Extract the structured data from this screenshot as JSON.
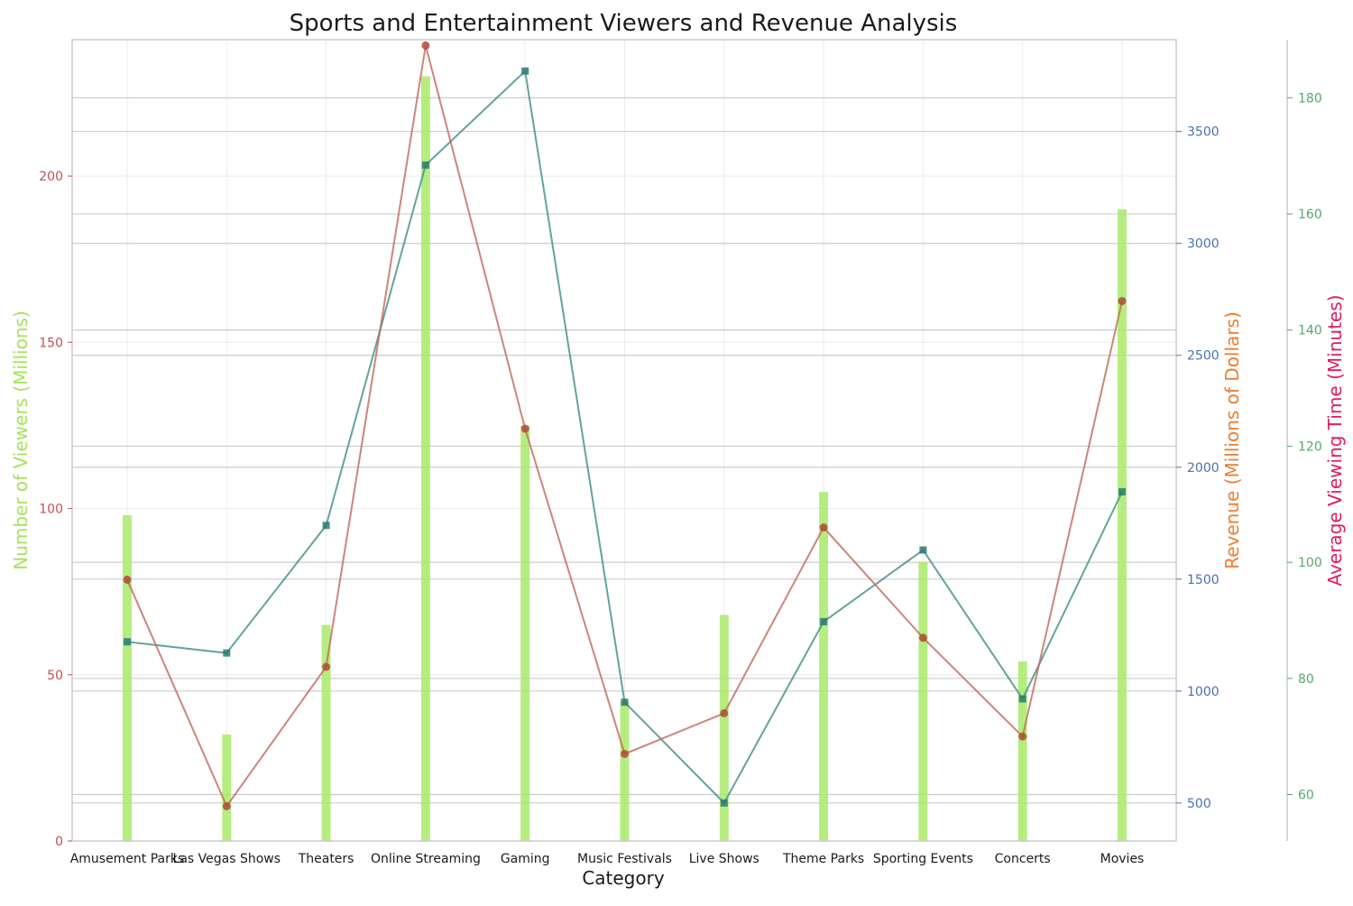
{
  "chart_data": {
    "type": "bar",
    "title": "Sports and Entertainment Viewers and Revenue Analysis",
    "xlabel": "Category",
    "categories": [
      "Amusement Parks",
      "Las Vegas Shows",
      "Theaters",
      "Online Streaming",
      "Gaming",
      "Music Festivals",
      "Live Shows",
      "Theme Parks",
      "Sporting Events",
      "Concerts",
      "Movies"
    ],
    "axes": {
      "viewers": {
        "label": "Number of Viewers (Millions)",
        "label_color": "#a9e15f",
        "tick_color": "#c44e52",
        "ylim": [
          0,
          241
        ],
        "ticks": [
          0,
          50,
          100,
          150,
          200
        ]
      },
      "revenue": {
        "label": "Revenue (Millions of Dollars)",
        "label_color": "#ed7d31",
        "tick_color": "#4c72b0",
        "ylim": [
          330,
          3910
        ],
        "ticks": [
          500,
          1000,
          1500,
          2000,
          2500,
          3000,
          3500
        ]
      },
      "viewing_time": {
        "label": "Average Viewing Time (Minutes)",
        "label_color": "#e31a5a",
        "tick_color": "#55a868",
        "ylim": [
          52,
          190
        ],
        "ticks": [
          60,
          80,
          100,
          120,
          140,
          160,
          180
        ]
      }
    },
    "series": [
      {
        "axis": "viewers",
        "kind": "bar",
        "color": "#a9ea6a",
        "values": [
          98,
          32,
          65,
          230,
          125,
          42,
          68,
          105,
          84,
          54,
          190
        ]
      },
      {
        "axis": "revenue",
        "kind": "line",
        "marker": "square",
        "color": "#3d8c86",
        "marker_color": "#2a7a72",
        "values": [
          1220,
          1170,
          1740,
          3350,
          3770,
          950,
          500,
          1310,
          1630,
          965,
          1890
        ]
      },
      {
        "axis": "viewing_time",
        "kind": "line",
        "marker": "circle",
        "color": "#c0665a",
        "marker_color": "#b04a3a",
        "values": [
          97,
          58,
          82,
          189,
          123,
          67,
          74,
          106,
          87,
          70,
          145
        ]
      }
    ],
    "grid": true
  }
}
